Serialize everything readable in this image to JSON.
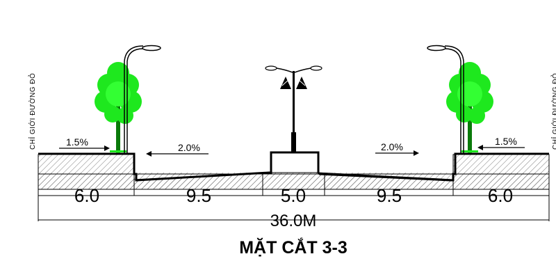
{
  "section_title": "MẶT CẮT 3-3",
  "side_labels": {
    "left": "CHỈ GIỚI ĐƯỜNG ĐỎ",
    "right": "CHỈ GIỚI ĐƯỜNG ĐỎ"
  },
  "slopes": [
    {
      "id": "left-sidewalk",
      "text": "1.5%",
      "direction": "right"
    },
    {
      "id": "left-lane",
      "text": "2.0%",
      "direction": "left"
    },
    {
      "id": "right-lane",
      "text": "2.0%",
      "direction": "right"
    },
    {
      "id": "right-sidewalk",
      "text": "1.5%",
      "direction": "left"
    }
  ],
  "segments": [
    {
      "name": "left-sidewalk",
      "width_m": 6.0,
      "label": "6.0"
    },
    {
      "name": "left-carriageway",
      "width_m": 9.5,
      "label": "9.5"
    },
    {
      "name": "median",
      "width_m": 5.0,
      "label": "5.0"
    },
    {
      "name": "right-carriageway",
      "width_m": 9.5,
      "label": "9.5"
    },
    {
      "name": "right-sidewalk",
      "width_m": 6.0,
      "label": "6.0"
    }
  ],
  "total_width": "36.0M",
  "colors": {
    "tree": "#1ee81e",
    "line": "#000000",
    "hatch": "#555555"
  }
}
